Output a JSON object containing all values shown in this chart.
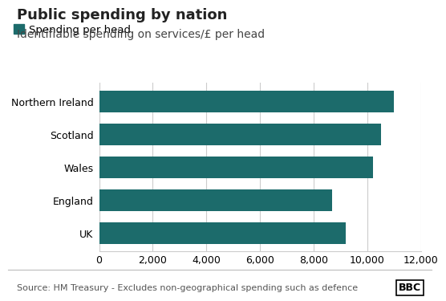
{
  "title": "Public spending by nation",
  "subtitle": "Identifiable spending on services/£ per head",
  "legend_label": "Spending per head",
  "categories": [
    "Northern Ireland",
    "Scotland",
    "Wales",
    "England",
    "UK"
  ],
  "values": [
    11000,
    10500,
    10200,
    8700,
    9200
  ],
  "bar_color": "#1c6b6b",
  "xlim": [
    0,
    12000
  ],
  "xticks": [
    0,
    2000,
    4000,
    6000,
    8000,
    10000,
    12000
  ],
  "xtick_labels": [
    "0",
    "2,000",
    "4,000",
    "6,000",
    "8,000",
    "10,000",
    "12,000"
  ],
  "source_text": "Source: HM Treasury - Excludes non-geographical spending such as defence",
  "bbc_text": "BBC",
  "background_color": "#ffffff",
  "grid_color": "#cccccc",
  "title_fontsize": 13,
  "subtitle_fontsize": 10,
  "legend_fontsize": 9.5,
  "tick_fontsize": 9,
  "source_fontsize": 8
}
